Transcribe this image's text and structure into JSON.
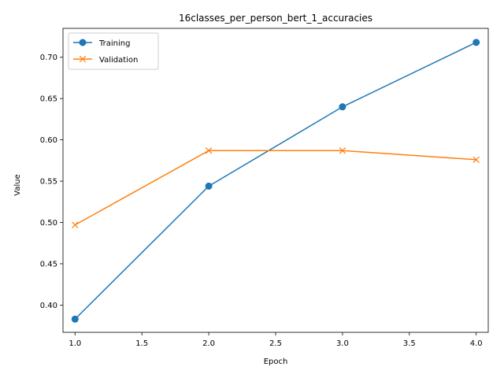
{
  "chart_data": {
    "type": "line",
    "title": "16classes_per_person_bert_1_accuracies",
    "xlabel": "Epoch",
    "ylabel": "Value",
    "x": [
      1.0,
      2.0,
      3.0,
      4.0
    ],
    "xlim": [
      0.91,
      4.09
    ],
    "ylim": [
      0.367,
      0.735
    ],
    "xticks": [
      1.0,
      1.5,
      2.0,
      2.5,
      3.0,
      3.5,
      4.0
    ],
    "xtick_labels": [
      "1.0",
      "1.5",
      "2.0",
      "2.5",
      "3.0",
      "3.5",
      "4.0"
    ],
    "yticks": [
      0.4,
      0.45,
      0.5,
      0.55,
      0.6,
      0.65,
      0.7
    ],
    "ytick_labels": [
      "0.40",
      "0.45",
      "0.50",
      "0.55",
      "0.60",
      "0.65",
      "0.70"
    ],
    "grid": false,
    "legend_position": "upper-left",
    "series": [
      {
        "name": "Training",
        "values": [
          0.383,
          0.544,
          0.64,
          0.718
        ],
        "color": "#1f77b4",
        "marker": "circle"
      },
      {
        "name": "Validation",
        "values": [
          0.497,
          0.587,
          0.587,
          0.576
        ],
        "color": "#ff7f0e",
        "marker": "x"
      }
    ]
  }
}
